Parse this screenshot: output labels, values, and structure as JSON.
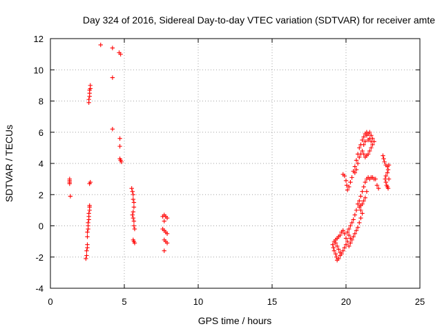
{
  "chart_data": {
    "type": "scatter",
    "title": "Day 324 of 2016, Sidereal Day-to-day VTEC variation (SDTVAR) for receiver amte",
    "xlabel": "GPS time / hours",
    "ylabel": "SDTVAR / TECUs",
    "xlim": [
      0,
      25
    ],
    "ylim": [
      -4,
      12
    ],
    "xticks": [
      0,
      5,
      10,
      15,
      20,
      25
    ],
    "yticks": [
      -4,
      -2,
      0,
      2,
      4,
      6,
      8,
      10,
      12
    ],
    "grid": true,
    "marker": "plus",
    "color": "#ff0000",
    "series": [
      {
        "points": [
          [
            1.3,
            3.0
          ],
          [
            1.3,
            2.9
          ],
          [
            1.3,
            2.8
          ],
          [
            1.3,
            2.7
          ],
          [
            1.35,
            1.9
          ],
          [
            2.4,
            -2.1
          ],
          [
            2.45,
            -1.9
          ],
          [
            2.45,
            -1.6
          ],
          [
            2.5,
            -1.4
          ],
          [
            2.5,
            -1.2
          ],
          [
            2.5,
            -0.7
          ],
          [
            2.5,
            -0.4
          ],
          [
            2.55,
            -0.2
          ],
          [
            2.55,
            0.0
          ],
          [
            2.55,
            0.2
          ],
          [
            2.6,
            0.4
          ],
          [
            2.6,
            0.6
          ],
          [
            2.6,
            0.8
          ],
          [
            2.65,
            1.0
          ],
          [
            2.65,
            1.2
          ],
          [
            2.65,
            1.3
          ],
          [
            2.65,
            2.7
          ],
          [
            2.7,
            2.8
          ],
          [
            2.6,
            7.9
          ],
          [
            2.6,
            8.1
          ],
          [
            2.65,
            8.3
          ],
          [
            2.65,
            8.5
          ],
          [
            2.65,
            8.7
          ],
          [
            2.7,
            8.8
          ],
          [
            2.7,
            9.0
          ],
          [
            3.4,
            11.6
          ],
          [
            4.2,
            11.4
          ],
          [
            4.65,
            11.1
          ],
          [
            4.75,
            11.0
          ],
          [
            4.2,
            9.5
          ],
          [
            4.2,
            6.2
          ],
          [
            4.7,
            5.6
          ],
          [
            4.7,
            5.1
          ],
          [
            4.7,
            4.3
          ],
          [
            4.75,
            4.2
          ],
          [
            4.8,
            4.1
          ],
          [
            5.5,
            2.4
          ],
          [
            5.55,
            2.2
          ],
          [
            5.6,
            2.0
          ],
          [
            5.6,
            1.7
          ],
          [
            5.65,
            1.5
          ],
          [
            5.65,
            1.2
          ],
          [
            5.6,
            0.9
          ],
          [
            5.55,
            0.7
          ],
          [
            5.6,
            0.5
          ],
          [
            5.65,
            0.3
          ],
          [
            5.65,
            0.0
          ],
          [
            5.7,
            -0.2
          ],
          [
            5.6,
            -0.9
          ],
          [
            5.65,
            -1.0
          ],
          [
            5.7,
            -1.1
          ],
          [
            7.6,
            0.6
          ],
          [
            7.7,
            0.7
          ],
          [
            7.8,
            0.6
          ],
          [
            7.9,
            0.5
          ],
          [
            7.7,
            0.3
          ],
          [
            7.6,
            -0.2
          ],
          [
            7.7,
            -0.3
          ],
          [
            7.8,
            -0.4
          ],
          [
            7.9,
            -0.5
          ],
          [
            7.7,
            -0.9
          ],
          [
            7.8,
            -1.0
          ],
          [
            7.9,
            -1.1
          ],
          [
            7.7,
            -1.6
          ],
          [
            19.1,
            -1.2
          ],
          [
            19.15,
            -1.4
          ],
          [
            19.2,
            -1.6
          ],
          [
            19.3,
            -1.8
          ],
          [
            19.35,
            -2.0
          ],
          [
            19.4,
            -2.2
          ],
          [
            19.5,
            -2.1
          ],
          [
            19.6,
            -1.9
          ],
          [
            19.2,
            -1.0
          ],
          [
            19.3,
            -0.9
          ],
          [
            19.4,
            -0.8
          ],
          [
            19.5,
            -0.7
          ],
          [
            19.6,
            -0.6
          ],
          [
            19.7,
            -0.4
          ],
          [
            19.8,
            -0.3
          ],
          [
            19.9,
            -0.5
          ],
          [
            20.0,
            -0.8
          ],
          [
            20.1,
            -1.0
          ],
          [
            20.0,
            -1.2
          ],
          [
            19.9,
            -1.4
          ],
          [
            19.8,
            -1.6
          ],
          [
            19.7,
            -1.8
          ],
          [
            19.6,
            -1.7
          ],
          [
            19.5,
            -1.5
          ],
          [
            19.4,
            -1.3
          ],
          [
            19.3,
            -1.1
          ],
          [
            20.2,
            -1.3
          ],
          [
            20.3,
            -1.1
          ],
          [
            20.4,
            -0.9
          ],
          [
            20.5,
            -0.7
          ],
          [
            20.6,
            -0.5
          ],
          [
            20.7,
            -0.3
          ],
          [
            20.8,
            -0.1
          ],
          [
            20.9,
            0.2
          ],
          [
            21.0,
            0.5
          ],
          [
            21.1,
            0.8
          ],
          [
            21.0,
            1.0
          ],
          [
            20.9,
            1.2
          ],
          [
            20.8,
            1.4
          ],
          [
            20.7,
            1.0
          ],
          [
            20.6,
            0.7
          ],
          [
            20.5,
            0.4
          ],
          [
            20.4,
            0.2
          ],
          [
            20.3,
            0.0
          ],
          [
            20.2,
            -0.2
          ],
          [
            20.1,
            -0.4
          ],
          [
            20.2,
            -0.6
          ],
          [
            20.3,
            -0.8
          ],
          [
            20.9,
            1.6
          ],
          [
            21.0,
            1.9
          ],
          [
            21.1,
            2.2
          ],
          [
            21.2,
            2.5
          ],
          [
            21.3,
            2.8
          ],
          [
            21.4,
            3.0
          ],
          [
            21.5,
            3.1
          ],
          [
            21.6,
            3.0
          ],
          [
            21.7,
            3.1
          ],
          [
            21.8,
            3.1
          ],
          [
            21.9,
            3.0
          ],
          [
            21.4,
            2.2
          ],
          [
            21.3,
            1.8
          ],
          [
            21.2,
            1.6
          ],
          [
            21.1,
            1.4
          ],
          [
            21.0,
            1.3
          ],
          [
            19.8,
            3.3
          ],
          [
            19.9,
            3.2
          ],
          [
            20.0,
            2.9
          ],
          [
            20.05,
            2.6
          ],
          [
            20.1,
            2.3
          ],
          [
            20.2,
            2.5
          ],
          [
            20.3,
            2.8
          ],
          [
            20.4,
            3.1
          ],
          [
            20.5,
            3.5
          ],
          [
            20.6,
            3.8
          ],
          [
            20.7,
            4.2
          ],
          [
            20.8,
            4.6
          ],
          [
            20.9,
            5.0
          ],
          [
            21.0,
            5.2
          ],
          [
            21.1,
            5.5
          ],
          [
            21.2,
            5.7
          ],
          [
            21.3,
            5.9
          ],
          [
            21.4,
            6.0
          ],
          [
            21.5,
            5.9
          ],
          [
            21.6,
            6.0
          ],
          [
            21.7,
            5.8
          ],
          [
            21.8,
            5.6
          ],
          [
            21.9,
            5.4
          ],
          [
            21.8,
            5.2
          ],
          [
            21.7,
            5.0
          ],
          [
            21.6,
            4.8
          ],
          [
            21.5,
            4.6
          ],
          [
            21.4,
            4.5
          ],
          [
            21.3,
            4.4
          ],
          [
            21.2,
            4.6
          ],
          [
            21.1,
            4.8
          ],
          [
            21.0,
            4.6
          ],
          [
            20.9,
            4.4
          ],
          [
            20.8,
            4.0
          ],
          [
            20.7,
            3.6
          ],
          [
            20.6,
            3.4
          ],
          [
            21.2,
            5.2
          ],
          [
            21.3,
            5.4
          ],
          [
            21.5,
            5.5
          ],
          [
            21.6,
            5.6
          ],
          [
            21.7,
            5.4
          ],
          [
            21.4,
            5.8
          ],
          [
            22.0,
            3.0
          ],
          [
            22.1,
            2.6
          ],
          [
            22.2,
            2.4
          ],
          [
            22.5,
            4.5
          ],
          [
            22.55,
            4.3
          ],
          [
            22.6,
            4.1
          ],
          [
            22.7,
            3.9
          ],
          [
            22.8,
            3.8
          ],
          [
            22.85,
            3.6
          ],
          [
            22.8,
            3.4
          ],
          [
            22.7,
            3.2
          ],
          [
            22.65,
            3.0
          ],
          [
            22.7,
            2.8
          ],
          [
            22.75,
            2.6
          ],
          [
            22.8,
            2.5
          ],
          [
            22.85,
            2.4
          ],
          [
            22.9,
            3.9
          ],
          [
            22.9,
            3.0
          ]
        ]
      }
    ]
  }
}
